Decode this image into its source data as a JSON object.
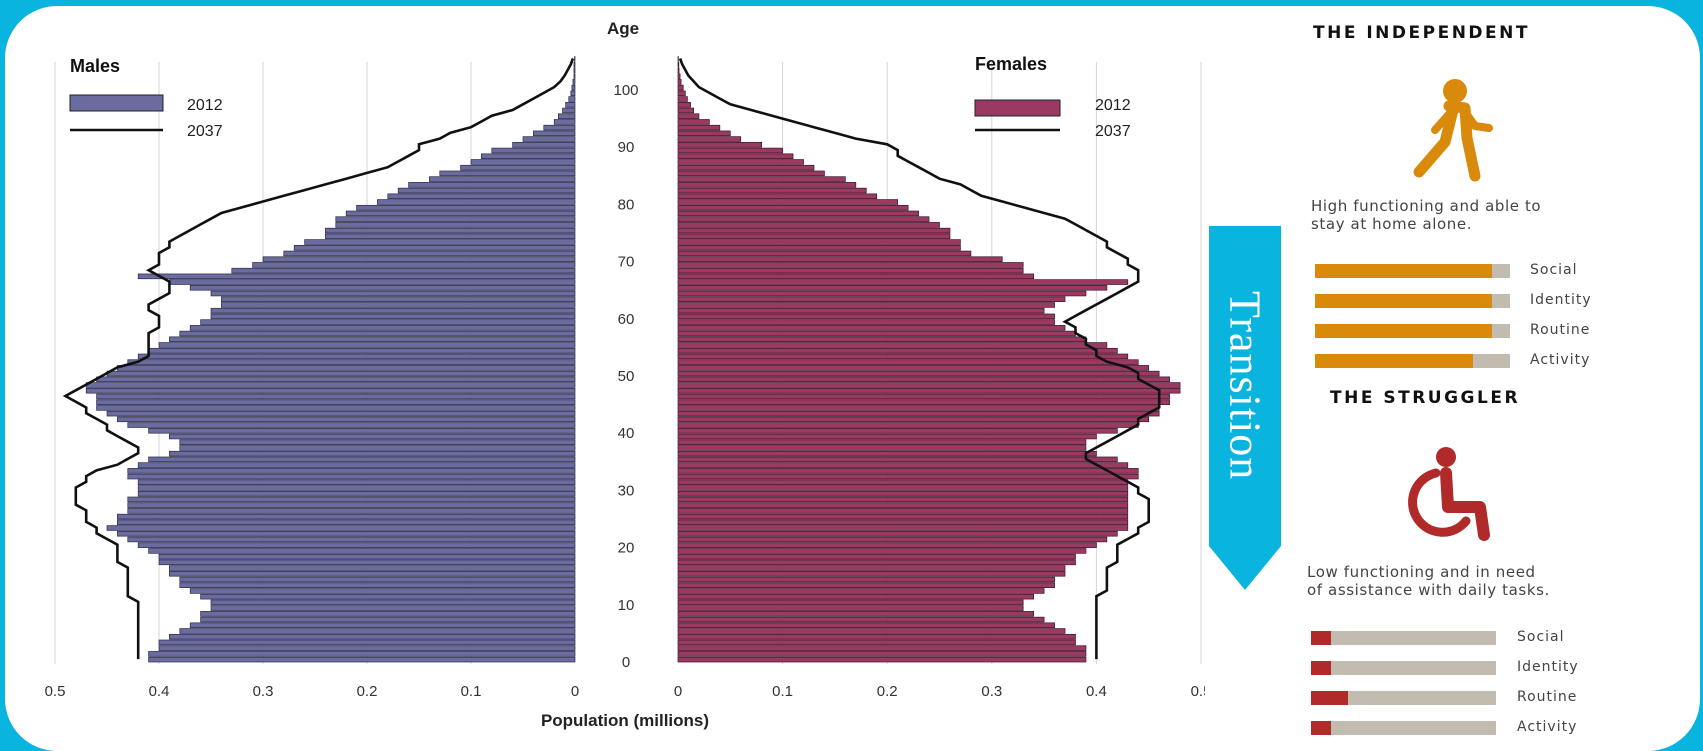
{
  "colors": {
    "frame": "#09b4df",
    "males_2012": "#6a6b9e",
    "females_2012": "#9a3a63",
    "projection_line": "#111111",
    "independent_accent": "#d98a0a",
    "struggler_accent": "#b02a2a",
    "bar_track": "#c2bbb0"
  },
  "chart_data": {
    "type": "bar",
    "orientation": "horizontal-population-pyramid",
    "age_axis_label": "Age",
    "age_ticks": [
      0,
      10,
      20,
      30,
      40,
      50,
      60,
      70,
      80,
      90,
      100
    ],
    "xlabel": "Population (millions)",
    "x_ticks_left": [
      "0.5",
      "0.4",
      "0.3",
      "0.2",
      "0.1",
      "0"
    ],
    "x_ticks_right": [
      "0",
      "0.1",
      "0.2",
      "0.3",
      "0.4",
      "0.5"
    ],
    "xlim": [
      0,
      0.5
    ],
    "ylim": [
      0,
      105
    ],
    "grid": true,
    "legend_placement": "top-left and top-right",
    "panels": [
      {
        "title": "Males",
        "side": "left",
        "legend": [
          {
            "label": "2012",
            "kind": "bar"
          },
          {
            "label": "2037",
            "kind": "line"
          }
        ],
        "ages_start": 0,
        "values_2012": [
          0.41,
          0.41,
          0.4,
          0.4,
          0.39,
          0.38,
          0.37,
          0.36,
          0.36,
          0.35,
          0.35,
          0.36,
          0.37,
          0.38,
          0.38,
          0.39,
          0.39,
          0.4,
          0.4,
          0.41,
          0.42,
          0.43,
          0.44,
          0.45,
          0.44,
          0.44,
          0.43,
          0.43,
          0.43,
          0.42,
          0.42,
          0.42,
          0.43,
          0.43,
          0.42,
          0.41,
          0.39,
          0.38,
          0.38,
          0.39,
          0.41,
          0.43,
          0.44,
          0.45,
          0.46,
          0.46,
          0.46,
          0.47,
          0.47,
          0.46,
          0.45,
          0.44,
          0.43,
          0.42,
          0.41,
          0.4,
          0.39,
          0.38,
          0.37,
          0.36,
          0.35,
          0.35,
          0.34,
          0.34,
          0.35,
          0.37,
          0.39,
          0.42,
          0.33,
          0.31,
          0.3,
          0.28,
          0.27,
          0.26,
          0.24,
          0.24,
          0.23,
          0.23,
          0.22,
          0.21,
          0.19,
          0.18,
          0.17,
          0.16,
          0.14,
          0.13,
          0.11,
          0.1,
          0.09,
          0.08,
          0.06,
          0.05,
          0.04,
          0.03,
          0.02,
          0.016,
          0.012,
          0.009,
          0.006,
          0.004,
          0.003,
          0.002,
          0.001,
          0.001,
          0.001,
          0.0005
        ],
        "values_2037": [
          0.42,
          0.42,
          0.42,
          0.42,
          0.42,
          0.42,
          0.42,
          0.42,
          0.42,
          0.42,
          0.42,
          0.43,
          0.43,
          0.43,
          0.43,
          0.43,
          0.43,
          0.44,
          0.44,
          0.44,
          0.44,
          0.45,
          0.46,
          0.46,
          0.47,
          0.47,
          0.47,
          0.48,
          0.48,
          0.48,
          0.48,
          0.47,
          0.47,
          0.46,
          0.44,
          0.43,
          0.42,
          0.42,
          0.43,
          0.44,
          0.45,
          0.45,
          0.46,
          0.47,
          0.47,
          0.48,
          0.49,
          0.48,
          0.47,
          0.46,
          0.45,
          0.44,
          0.42,
          0.41,
          0.41,
          0.41,
          0.41,
          0.41,
          0.4,
          0.4,
          0.4,
          0.41,
          0.41,
          0.4,
          0.39,
          0.39,
          0.39,
          0.4,
          0.41,
          0.4,
          0.4,
          0.4,
          0.39,
          0.39,
          0.38,
          0.37,
          0.36,
          0.35,
          0.34,
          0.32,
          0.3,
          0.28,
          0.26,
          0.24,
          0.22,
          0.2,
          0.18,
          0.17,
          0.16,
          0.15,
          0.15,
          0.13,
          0.12,
          0.1,
          0.09,
          0.08,
          0.06,
          0.05,
          0.04,
          0.03,
          0.02,
          0.014,
          0.01,
          0.007,
          0.004,
          0.002
        ]
      },
      {
        "title": "Females",
        "side": "right",
        "legend": [
          {
            "label": "2012",
            "kind": "bar"
          },
          {
            "label": "2037",
            "kind": "line"
          }
        ],
        "ages_start": 0,
        "values_2012": [
          0.39,
          0.39,
          0.39,
          0.38,
          0.38,
          0.37,
          0.36,
          0.35,
          0.34,
          0.33,
          0.33,
          0.34,
          0.35,
          0.36,
          0.36,
          0.37,
          0.37,
          0.38,
          0.38,
          0.39,
          0.4,
          0.41,
          0.42,
          0.43,
          0.43,
          0.43,
          0.43,
          0.43,
          0.43,
          0.43,
          0.43,
          0.43,
          0.44,
          0.44,
          0.43,
          0.42,
          0.4,
          0.39,
          0.39,
          0.4,
          0.42,
          0.44,
          0.45,
          0.46,
          0.46,
          0.47,
          0.47,
          0.48,
          0.48,
          0.47,
          0.46,
          0.45,
          0.44,
          0.43,
          0.42,
          0.41,
          0.39,
          0.38,
          0.37,
          0.36,
          0.36,
          0.35,
          0.36,
          0.37,
          0.39,
          0.41,
          0.43,
          0.34,
          0.33,
          0.33,
          0.31,
          0.28,
          0.27,
          0.27,
          0.26,
          0.26,
          0.25,
          0.24,
          0.23,
          0.22,
          0.21,
          0.19,
          0.18,
          0.17,
          0.16,
          0.14,
          0.13,
          0.12,
          0.11,
          0.1,
          0.08,
          0.06,
          0.05,
          0.04,
          0.03,
          0.02,
          0.015,
          0.012,
          0.009,
          0.007,
          0.005,
          0.003,
          0.002,
          0.001,
          0.0008,
          0.0004
        ],
        "values_2037": [
          0.4,
          0.4,
          0.4,
          0.4,
          0.4,
          0.4,
          0.4,
          0.4,
          0.4,
          0.4,
          0.4,
          0.4,
          0.41,
          0.41,
          0.41,
          0.41,
          0.41,
          0.42,
          0.42,
          0.42,
          0.42,
          0.43,
          0.44,
          0.44,
          0.45,
          0.45,
          0.45,
          0.45,
          0.45,
          0.44,
          0.44,
          0.43,
          0.42,
          0.41,
          0.4,
          0.39,
          0.39,
          0.4,
          0.41,
          0.42,
          0.43,
          0.44,
          0.44,
          0.45,
          0.46,
          0.46,
          0.46,
          0.46,
          0.45,
          0.44,
          0.44,
          0.43,
          0.41,
          0.4,
          0.4,
          0.39,
          0.39,
          0.38,
          0.38,
          0.37,
          0.38,
          0.39,
          0.4,
          0.41,
          0.42,
          0.43,
          0.44,
          0.44,
          0.44,
          0.43,
          0.43,
          0.42,
          0.41,
          0.41,
          0.4,
          0.39,
          0.38,
          0.37,
          0.35,
          0.33,
          0.31,
          0.29,
          0.28,
          0.27,
          0.25,
          0.24,
          0.23,
          0.22,
          0.21,
          0.21,
          0.2,
          0.17,
          0.15,
          0.13,
          0.11,
          0.09,
          0.07,
          0.05,
          0.04,
          0.03,
          0.02,
          0.015,
          0.01,
          0.007,
          0.004,
          0.002
        ]
      }
    ]
  },
  "transition_label": "Transition",
  "profiles": [
    {
      "title": "THE INDEPENDENT",
      "icon": "walking-person-icon",
      "description_line1": "High functioning and able to",
      "description_line2": "stay at home alone.",
      "metrics": [
        {
          "label": "Social",
          "value": 0.91
        },
        {
          "label": "Identity",
          "value": 0.91
        },
        {
          "label": "Routine",
          "value": 0.91
        },
        {
          "label": "Activity",
          "value": 0.81
        }
      ]
    },
    {
      "title": "THE STRUGGLER",
      "icon": "wheelchair-icon",
      "description_line1": "Low functioning and in need",
      "description_line2": "of assistance with daily tasks.",
      "metrics": [
        {
          "label": "Social",
          "value": 0.11
        },
        {
          "label": "Identity",
          "value": 0.11
        },
        {
          "label": "Routine",
          "value": 0.2
        },
        {
          "label": "Activity",
          "value": 0.11
        }
      ]
    }
  ]
}
